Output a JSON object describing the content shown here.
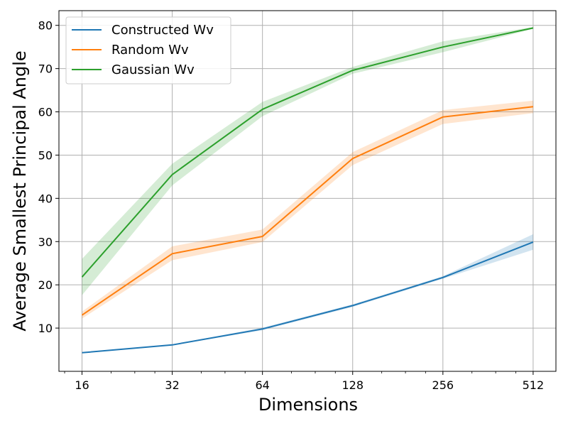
{
  "chart_data": {
    "type": "line",
    "title": "",
    "xlabel": "Dimensions",
    "ylabel": "Average Smallest Principal Angle",
    "x_scale": "log2",
    "x": [
      16,
      32,
      64,
      128,
      256,
      512
    ],
    "x_tick_labels": [
      "16",
      "32",
      "64",
      "128",
      "256",
      "512"
    ],
    "y_ticks": [
      10,
      20,
      30,
      40,
      50,
      60,
      70,
      80
    ],
    "xlim": [
      13.4,
      610
    ],
    "ylim": [
      0,
      83.4
    ],
    "grid": true,
    "legend": "top-left",
    "series": [
      {
        "name": "Constructed Wv",
        "color": "#1f77b4",
        "values": [
          4.3,
          6.1,
          9.8,
          15.2,
          21.7,
          29.9
        ],
        "lower": [
          4.2,
          6.0,
          9.5,
          14.9,
          21.4,
          28.1
        ],
        "upper": [
          4.4,
          6.2,
          10.1,
          15.5,
          22.0,
          31.7
        ]
      },
      {
        "name": "Random Wv",
        "color": "#ff7f0e",
        "values": [
          13.0,
          27.2,
          31.2,
          49.2,
          58.8,
          61.2
        ],
        "lower": [
          12.2,
          25.7,
          29.9,
          47.7,
          57.2,
          59.7
        ],
        "upper": [
          13.8,
          28.9,
          32.8,
          50.7,
          60.4,
          62.6
        ]
      },
      {
        "name": "Gaussian Wv",
        "color": "#2ca02c",
        "values": [
          21.8,
          45.5,
          60.6,
          69.6,
          75.0,
          79.4
        ],
        "lower": [
          17.6,
          43.0,
          59.0,
          68.8,
          73.8,
          79.2
        ],
        "upper": [
          26.0,
          48.0,
          62.3,
          70.4,
          76.3,
          79.6
        ]
      }
    ]
  }
}
